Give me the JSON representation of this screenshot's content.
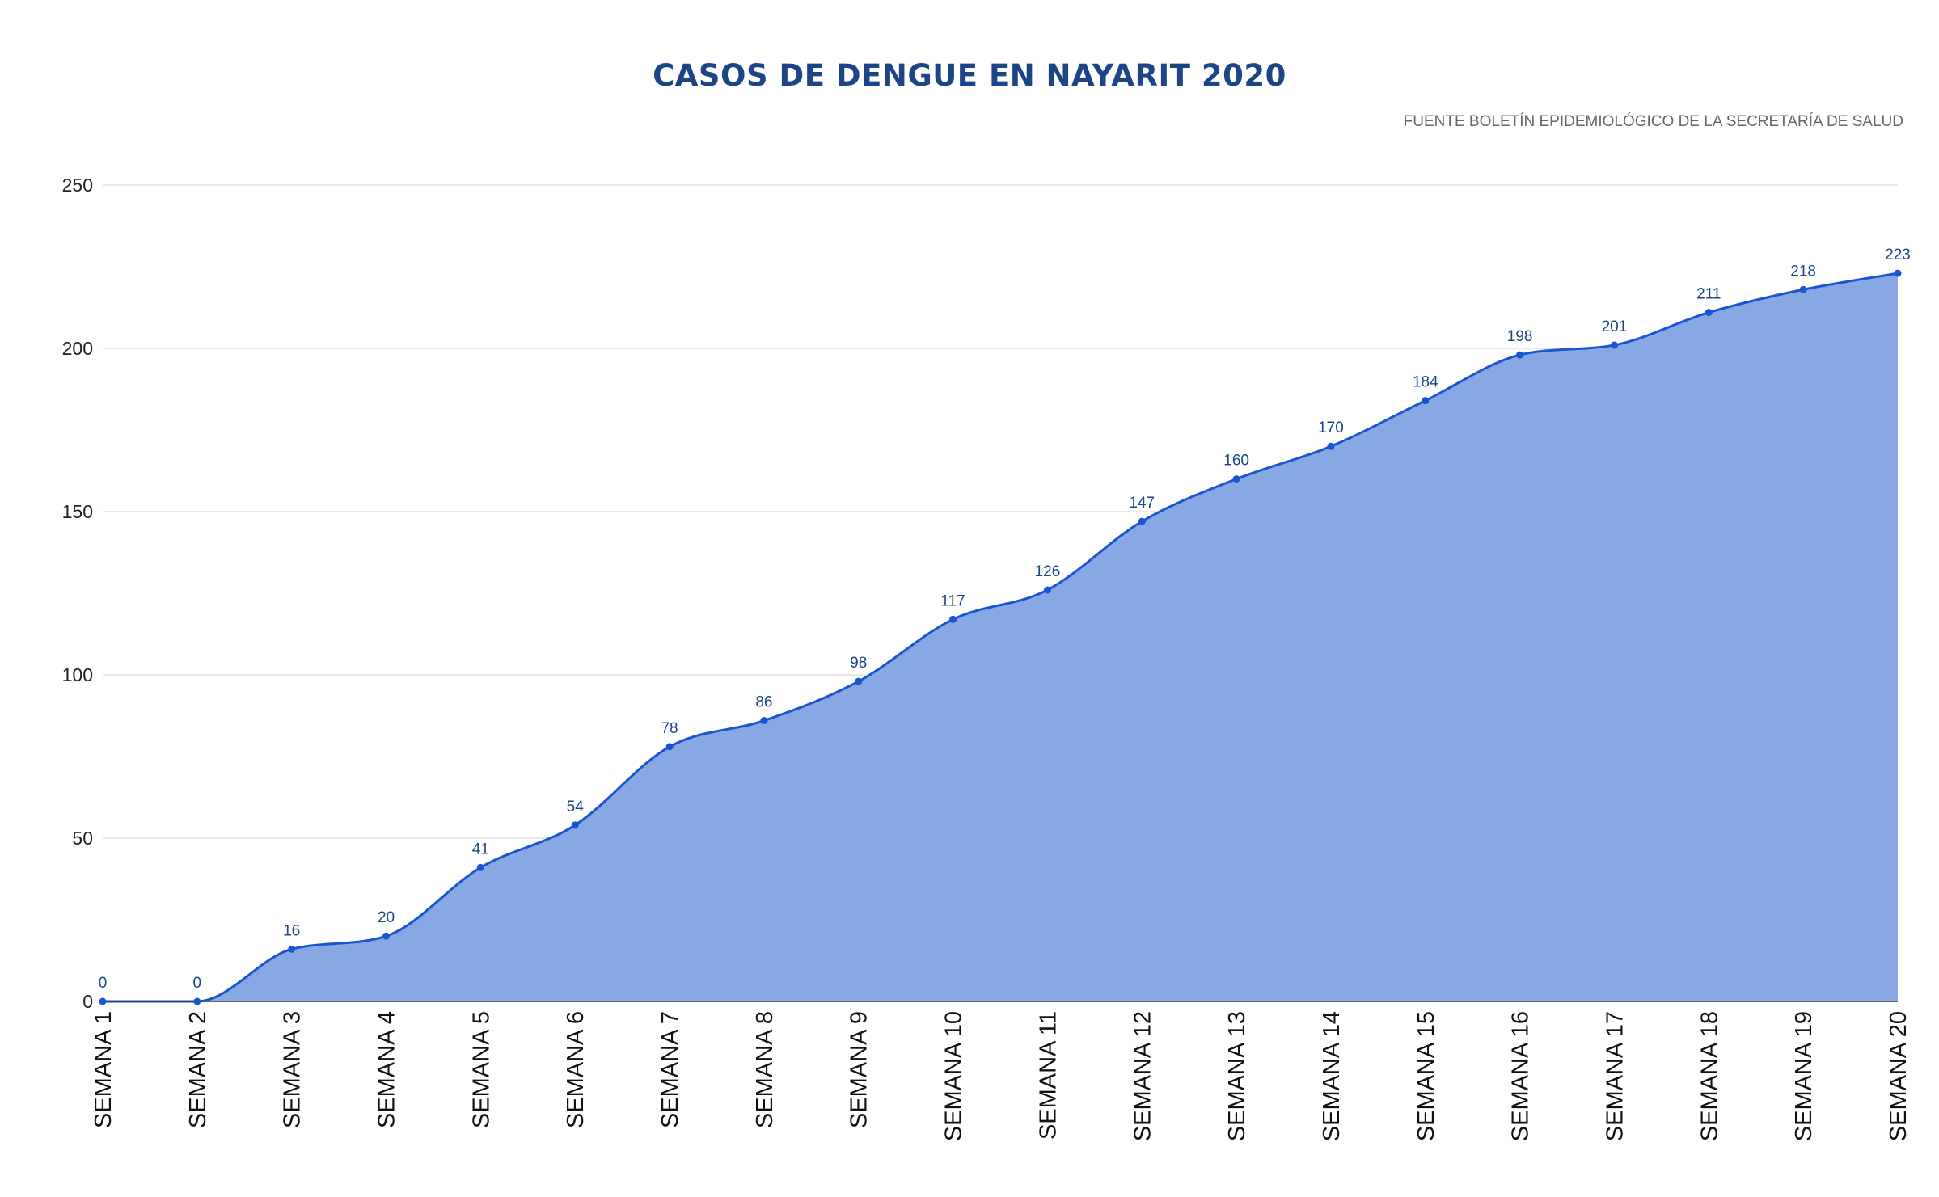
{
  "chart_data": {
    "type": "area",
    "title": "CASOS DE DENGUE EN NAYARIT 2020",
    "subtitle": "FUENTE BOLETÍN EPIDEMIOLÓGICO DE LA SECRETARÍA DE SALUD",
    "xlabel": "",
    "ylabel": "",
    "categories": [
      "SEMANA 1",
      "SEMANA 2",
      "SEMANA 3",
      "SEMANA 4",
      "SEMANA 5",
      "SEMANA 6",
      "SEMANA 7",
      "SEMANA 8",
      "SEMANA 9",
      "SEMANA 10",
      "SEMANA 11",
      "SEMANA 12",
      "SEMANA 13",
      "SEMANA 14",
      "SEMANA 15",
      "SEMANA 16",
      "SEMANA 17",
      "SEMANA 18",
      "SEMANA 19",
      "SEMANA 20"
    ],
    "values": [
      0,
      0,
      16,
      20,
      41,
      54,
      78,
      86,
      98,
      117,
      126,
      147,
      160,
      170,
      184,
      198,
      201,
      211,
      218,
      223
    ],
    "ylim": [
      0,
      250
    ],
    "yticks": [
      0,
      50,
      100,
      150,
      200,
      250
    ],
    "grid": true,
    "legend": "none",
    "data_labels": true,
    "colors": {
      "line": "#1a55d0",
      "fill": "#87a8e3",
      "title": "#1c4587",
      "label": "#1c4587",
      "grid": "#d9d9d9"
    }
  }
}
